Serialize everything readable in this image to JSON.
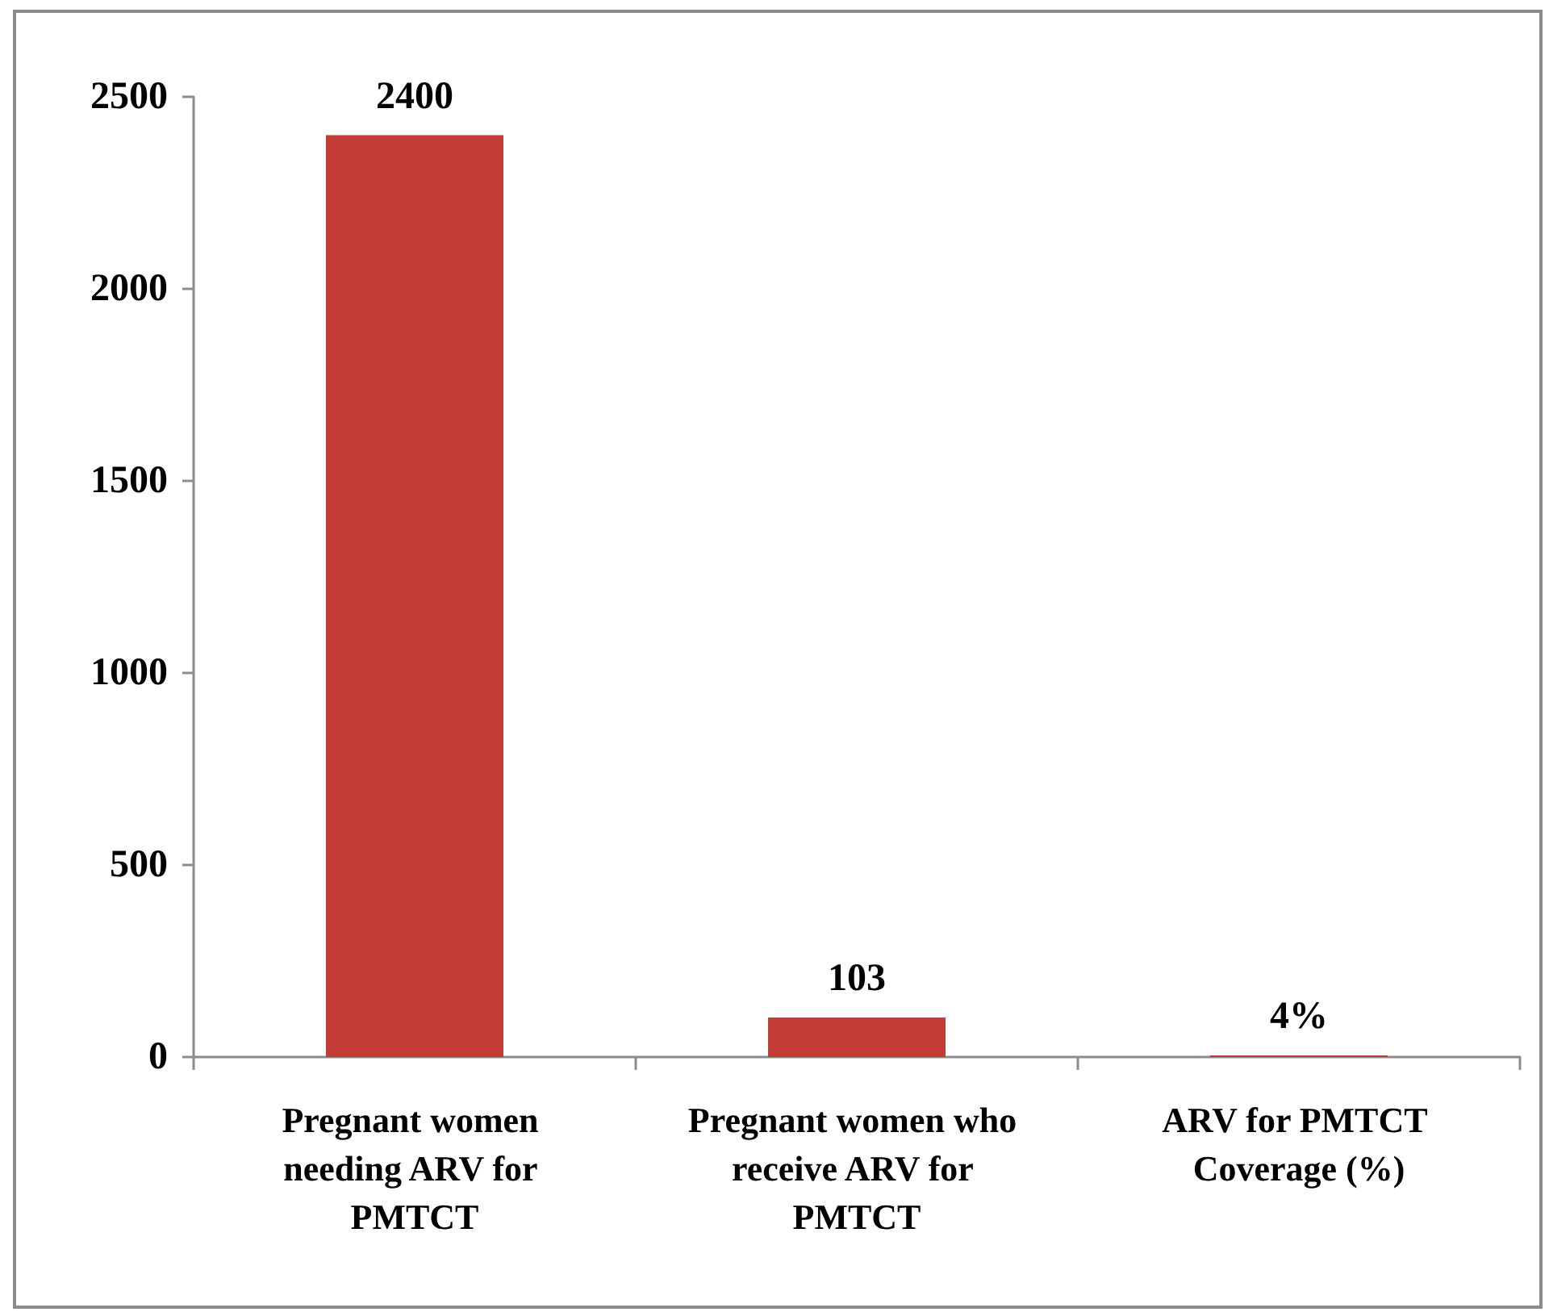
{
  "chart_data": {
    "type": "bar",
    "categories": [
      "Pregnant women needing ARV for PMTCT",
      "Pregnant women who receive ARV for PMTCT",
      "ARV for PMTCT Coverage (%)"
    ],
    "values": [
      2400,
      103,
      4
    ],
    "color": "#c43c37",
    "value_labels": [
      "2400",
      "103",
      "4%"
    ],
    "ylim": [
      0,
      2500
    ],
    "yticks": [
      0,
      500,
      1000,
      1500,
      2000,
      2500
    ],
    "grid": false
  }
}
